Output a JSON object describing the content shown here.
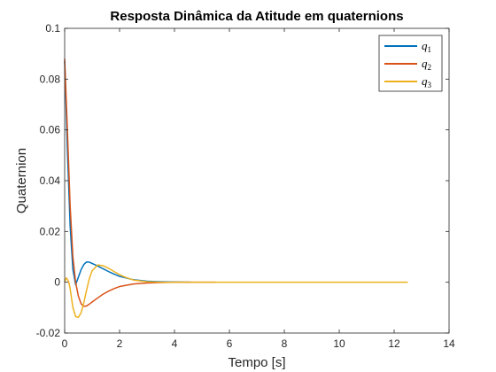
{
  "chart_data": {
    "type": "line",
    "title": "Resposta Dinâmica da Atitude em quaternions",
    "xlabel": "Tempo [s]",
    "ylabel": "Quaternion",
    "xlim": [
      0,
      14
    ],
    "ylim": [
      -0.02,
      0.1
    ],
    "xticks": [
      0,
      2,
      4,
      6,
      8,
      10,
      12,
      14
    ],
    "yticks": [
      -0.02,
      0,
      0.02,
      0.04,
      0.06,
      0.08,
      0.1
    ],
    "xtick_labels": [
      "0",
      "2",
      "4",
      "6",
      "8",
      "10",
      "12",
      "14"
    ],
    "ytick_labels": [
      "-0.02",
      "0",
      "0.02",
      "0.04",
      "0.06",
      "0.08",
      "0.1"
    ],
    "grid": false,
    "legend_position": "top-right",
    "series": [
      {
        "name": "q1",
        "label_main": "q",
        "label_sub": "1",
        "color": "#0072BD",
        "x": [
          0,
          0.1,
          0.2,
          0.3,
          0.4,
          0.5,
          0.6,
          0.7,
          0.8,
          0.9,
          1.0,
          1.2,
          1.4,
          1.6,
          1.8,
          2.0,
          2.5,
          3.0,
          3.5,
          4.0,
          4.6
        ],
        "y": [
          0.087,
          0.052,
          0.022,
          0.005,
          -0.001,
          0.002,
          0.005,
          0.007,
          0.008,
          0.0079,
          0.0074,
          0.0064,
          0.0053,
          0.0042,
          0.0032,
          0.0023,
          0.001,
          0.0004,
          0.0002,
          0.0001,
          0.0
        ]
      },
      {
        "name": "q2",
        "label_main": "q",
        "label_sub": "2",
        "color": "#D95319",
        "x": [
          0,
          0.1,
          0.2,
          0.3,
          0.4,
          0.5,
          0.6,
          0.7,
          0.8,
          0.9,
          1.0,
          1.2,
          1.4,
          1.6,
          1.8,
          2.0,
          2.5,
          3.0,
          3.5,
          4.0,
          5.0,
          5.5
        ],
        "y": [
          0.088,
          0.06,
          0.03,
          0.01,
          0.0,
          -0.0055,
          -0.0085,
          -0.0095,
          -0.0093,
          -0.0086,
          -0.0078,
          -0.0062,
          -0.0047,
          -0.0035,
          -0.0025,
          -0.0017,
          -0.0007,
          -0.0003,
          -0.0001,
          0.0,
          0.0,
          0.0
        ]
      },
      {
        "name": "q3",
        "label_main": "q",
        "label_sub": "3",
        "color": "#EDB120",
        "x": [
          0,
          0.05,
          0.1,
          0.15,
          0.2,
          0.3,
          0.4,
          0.5,
          0.6,
          0.7,
          0.8,
          0.9,
          1.0,
          1.2,
          1.4,
          1.6,
          1.8,
          2.0,
          2.2,
          2.5,
          3.0,
          3.5,
          4.0,
          5.0,
          6.0,
          8.0,
          10.0,
          12.5
        ],
        "y": [
          0.0,
          0.0017,
          0.0012,
          0.0,
          -0.0025,
          -0.01,
          -0.0135,
          -0.0138,
          -0.012,
          -0.008,
          -0.003,
          0.0015,
          0.0045,
          0.0068,
          0.0065,
          0.0055,
          0.0042,
          0.003,
          0.002,
          0.0009,
          0.0002,
          0.0,
          0.0,
          0.0,
          0.0,
          0.0,
          0.0,
          0.0
        ]
      }
    ]
  }
}
